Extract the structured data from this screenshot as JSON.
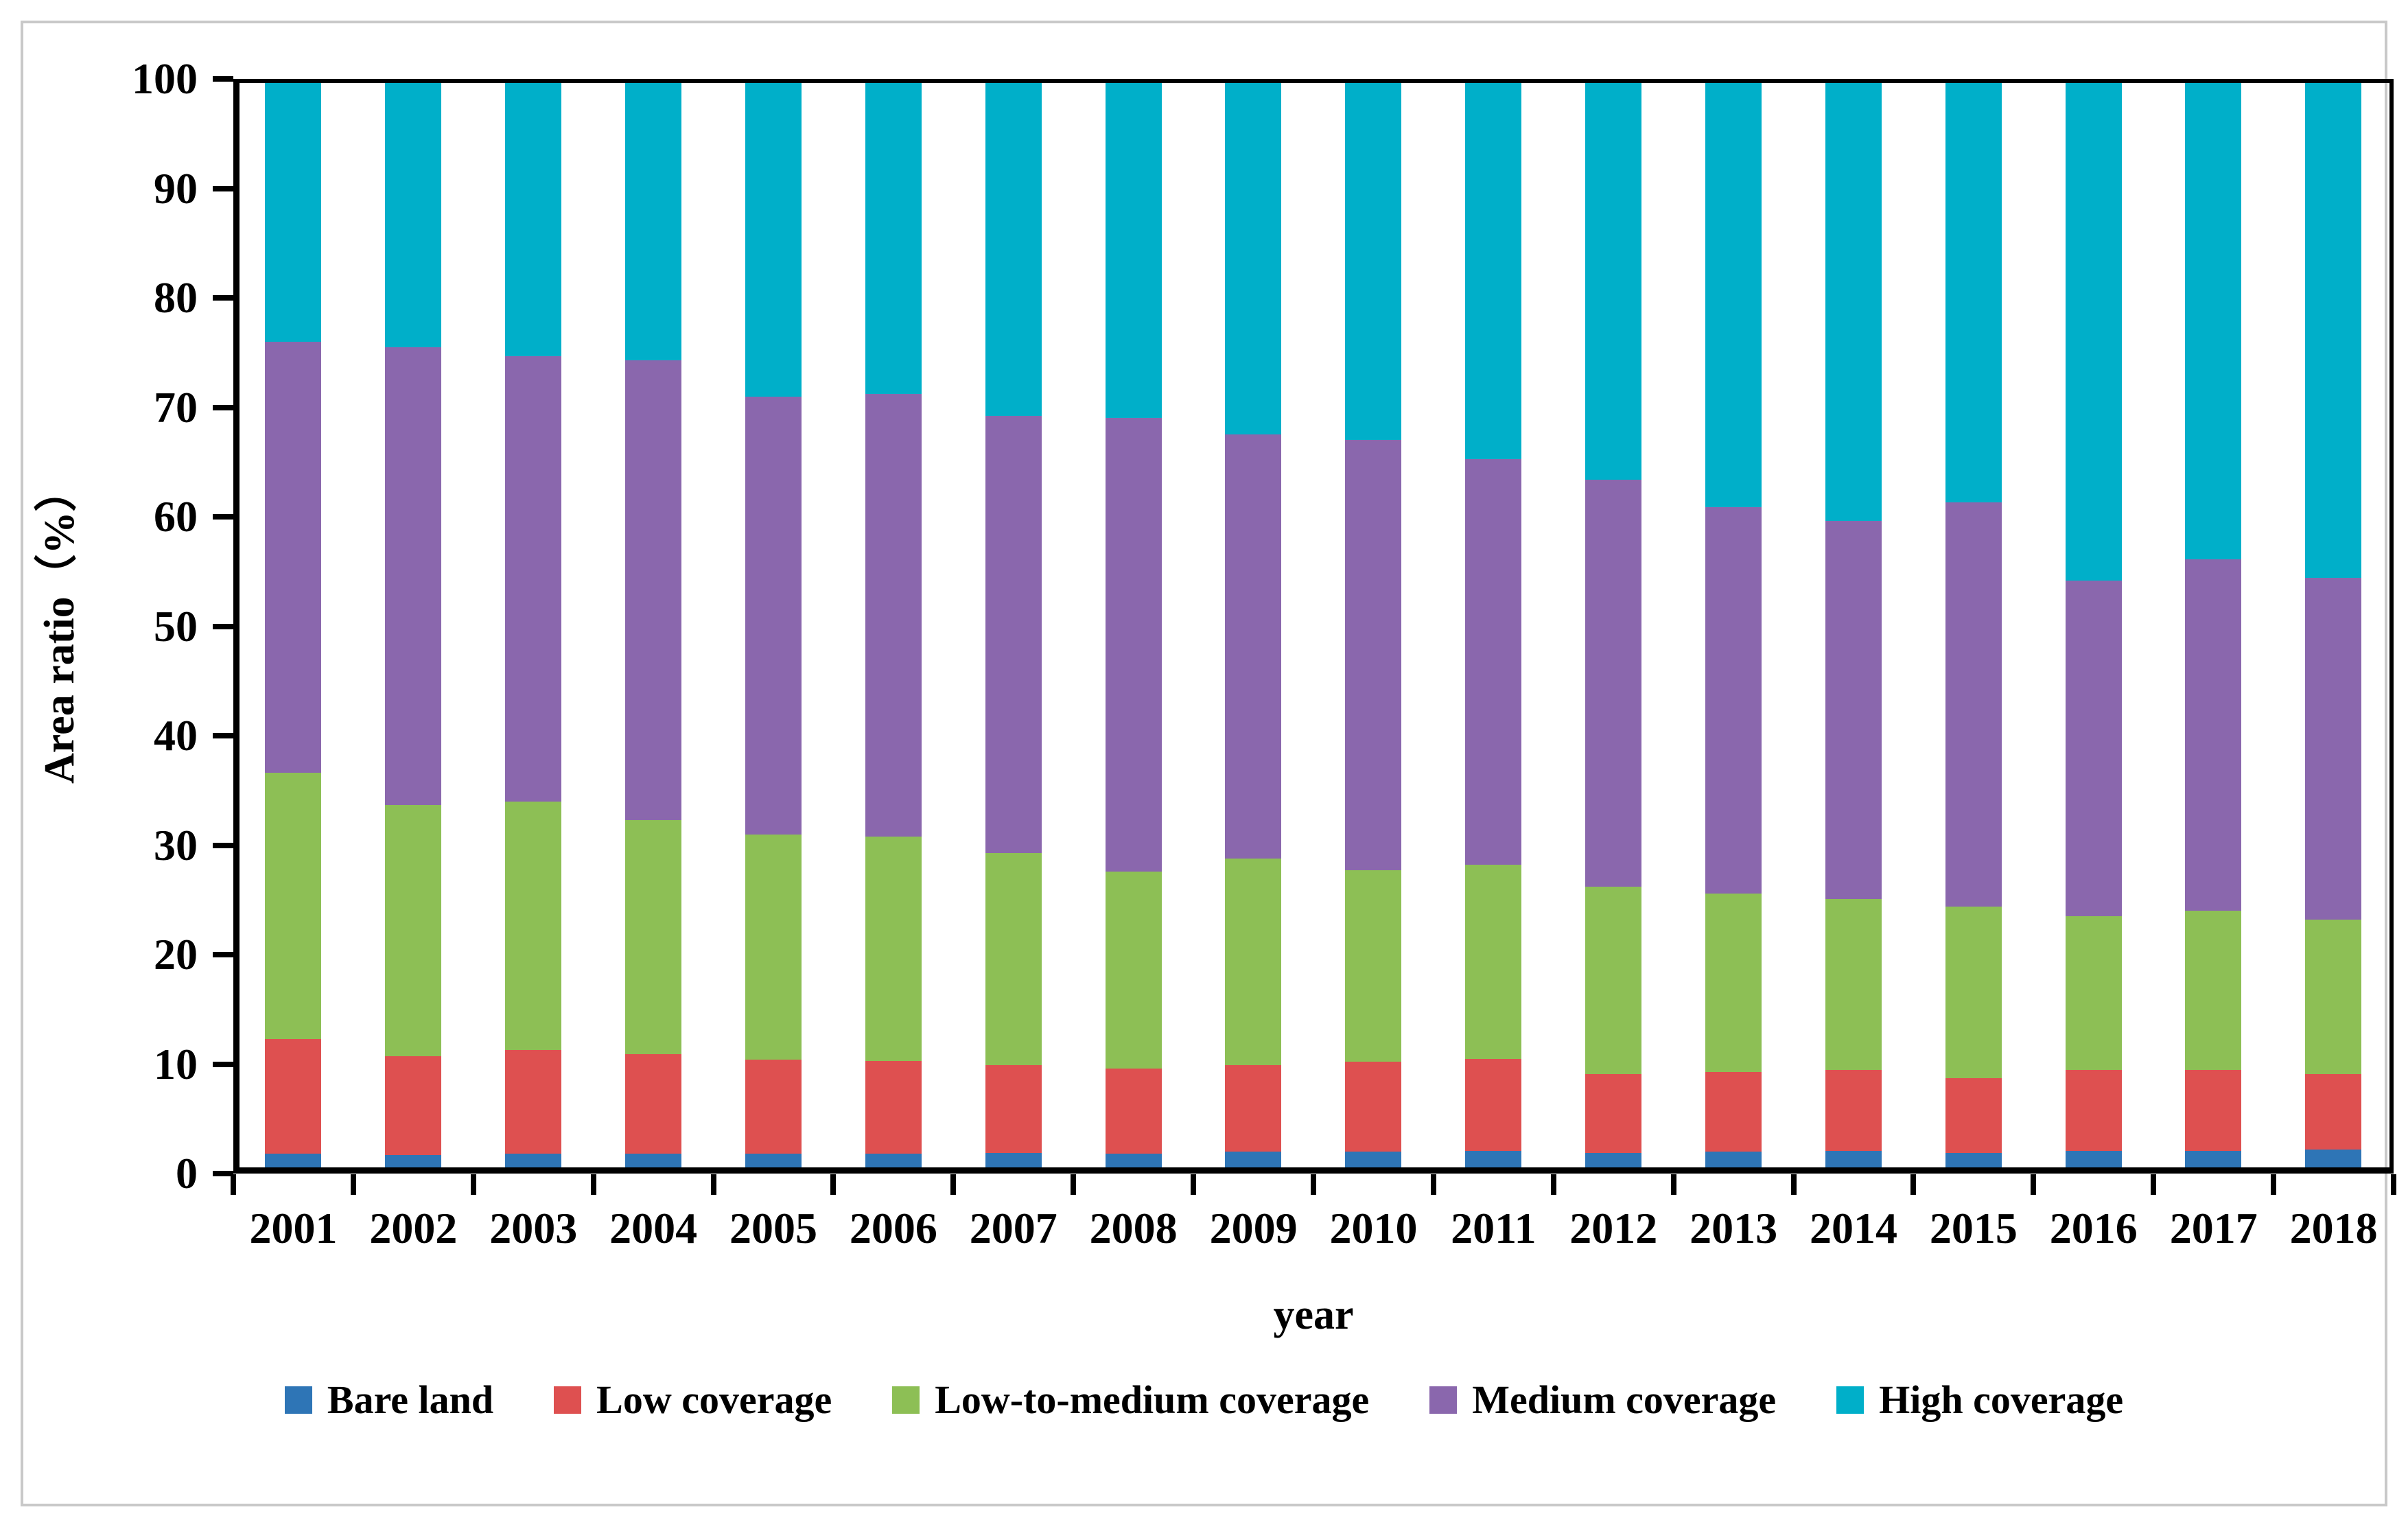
{
  "chart_data": {
    "type": "bar",
    "subtype": "stacked-100-percent",
    "title": "",
    "xlabel": "year",
    "ylabel": "Area ratio（%）",
    "ylim": [
      0,
      100
    ],
    "y_ticks": [
      0,
      10,
      20,
      30,
      40,
      50,
      60,
      70,
      80,
      90,
      100
    ],
    "grid": false,
    "legend_position": "bottom",
    "categories": [
      "2001",
      "2002",
      "2003",
      "2004",
      "2005",
      "2006",
      "2007",
      "2008",
      "2009",
      "2010",
      "2011",
      "2012",
      "2013",
      "2014",
      "2015",
      "2016",
      "2017",
      "2018"
    ],
    "series": [
      {
        "name": "Bare land",
        "color": "#2e75b6",
        "values": [
          1.8,
          1.7,
          1.8,
          1.8,
          1.8,
          1.8,
          1.9,
          1.8,
          2.0,
          2.0,
          2.1,
          1.9,
          2.0,
          2.1,
          1.9,
          2.1,
          2.1,
          2.2
        ]
      },
      {
        "name": "Low coverage",
        "color": "#de5050",
        "values": [
          10.5,
          9.0,
          9.5,
          9.1,
          8.6,
          8.5,
          8.0,
          7.8,
          7.9,
          8.2,
          8.4,
          7.2,
          7.3,
          7.4,
          6.8,
          7.4,
          7.4,
          6.9
        ]
      },
      {
        "name": "Low-to-medium coverage",
        "color": "#8dbf55",
        "values": [
          24.3,
          23.0,
          22.7,
          21.4,
          20.6,
          20.5,
          19.4,
          18.0,
          18.9,
          17.5,
          17.7,
          17.1,
          16.3,
          15.6,
          15.7,
          14.0,
          14.5,
          14.1
        ]
      },
      {
        "name": "Medium coverage",
        "color": "#8a67ad",
        "values": [
          39.4,
          41.8,
          40.7,
          42.0,
          40.0,
          40.4,
          39.9,
          41.4,
          38.7,
          39.3,
          37.1,
          37.2,
          35.3,
          34.5,
          36.9,
          30.7,
          32.1,
          31.2
        ]
      },
      {
        "name": "High coverage",
        "color": "#00afc9",
        "values": [
          24.0,
          24.5,
          25.3,
          25.7,
          29.0,
          28.8,
          30.8,
          31.0,
          32.5,
          33.0,
          34.7,
          36.6,
          39.1,
          40.4,
          38.7,
          45.8,
          43.9,
          45.6
        ]
      }
    ],
    "colors": {
      "axis": "#000000",
      "figure_border": "#c9c9c9",
      "background": "#ffffff"
    }
  }
}
